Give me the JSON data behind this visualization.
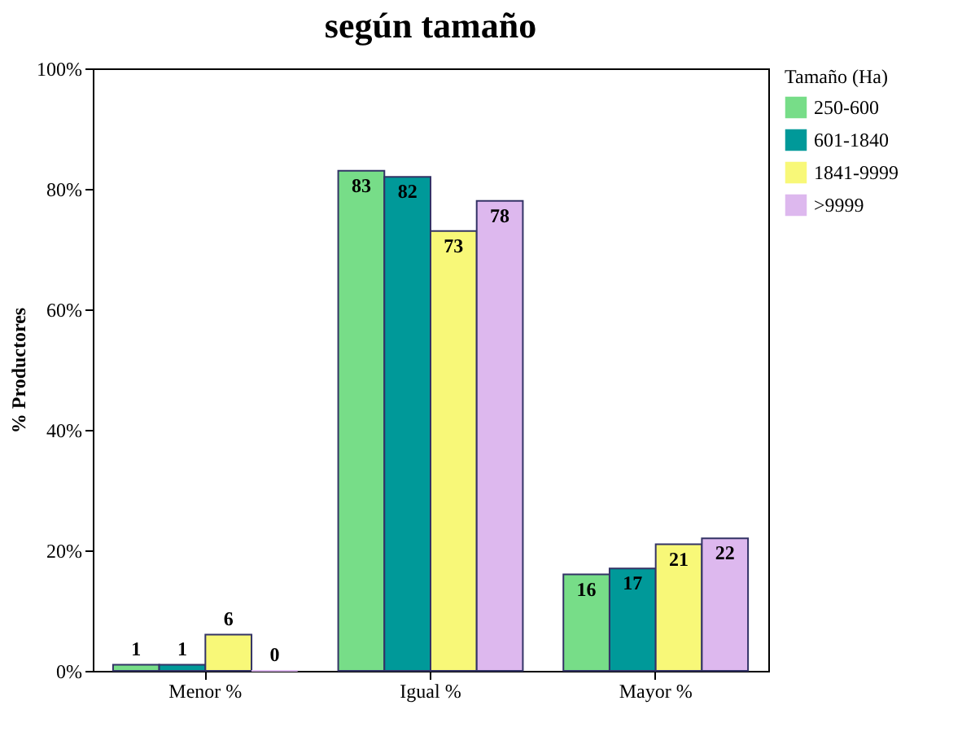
{
  "chart_data": {
    "type": "bar",
    "title": "según tamaño",
    "ylabel": "% Productores",
    "legend_title": "Tamaño (Ha)",
    "legend": "right",
    "data_labels": true,
    "categories": [
      "Menor %",
      "Igual %",
      "Mayor %"
    ],
    "ylim": [
      0,
      100
    ],
    "yticks": [
      {
        "value": 0,
        "label": "0%"
      },
      {
        "value": 20,
        "label": "20%"
      },
      {
        "value": 40,
        "label": "40%"
      },
      {
        "value": 60,
        "label": "60%"
      },
      {
        "value": 80,
        "label": "80%"
      },
      {
        "value": 100,
        "label": "100%"
      }
    ],
    "series": [
      {
        "name": "250-600",
        "color": "#77dd88",
        "values": [
          1,
          83,
          16
        ]
      },
      {
        "name": "601-1840",
        "color": "#009999",
        "values": [
          1,
          82,
          17
        ]
      },
      {
        "name": "1841-9999",
        "color": "#f8f878",
        "values": [
          6,
          73,
          21
        ]
      },
      {
        "name": ">9999",
        "color": "#ddb8ee",
        "values": [
          0,
          78,
          22
        ]
      }
    ]
  }
}
